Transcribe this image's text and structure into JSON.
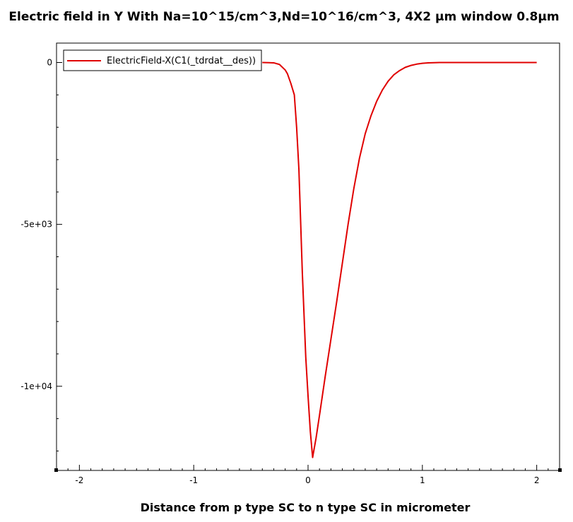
{
  "chart_data": {
    "type": "line",
    "title": "Electric field in Y With Na=10^15/cm^3,Nd=10^16/cm^3, 4X2 µm window 0.8µm",
    "xlabel": "Distance from p type SC to n type SC in micrometer",
    "ylabel": "",
    "xlim": [
      -2.2,
      2.2
    ],
    "ylim": [
      -12600,
      600
    ],
    "x_ticks": [
      -2,
      -1,
      0,
      1,
      2
    ],
    "x_tick_labels": [
      "-2",
      "-1",
      "0",
      "1",
      "2"
    ],
    "y_ticks": [
      0,
      -5000,
      -10000
    ],
    "y_tick_labels": [
      "0",
      "-5e+03",
      "-1e+04"
    ],
    "grid": false,
    "legend_position": "top-left",
    "series": [
      {
        "name": "ElectricField-X(C1(_tdrdat__des))",
        "color": "#e00000",
        "x": [
          -0.4,
          -0.3,
          -0.25,
          -0.2,
          -0.18,
          -0.15,
          -0.12,
          -0.1,
          -0.08,
          -0.05,
          -0.02,
          0.0,
          0.02,
          0.04,
          0.07,
          0.1,
          0.15,
          0.2,
          0.25,
          0.3,
          0.35,
          0.4,
          0.45,
          0.5,
          0.55,
          0.6,
          0.65,
          0.7,
          0.75,
          0.8,
          0.85,
          0.9,
          0.95,
          1.0,
          1.05,
          1.1,
          1.15,
          1.2,
          1.3,
          1.4,
          1.5,
          1.6,
          1.8,
          2.0
        ],
        "y": [
          0,
          -10,
          -60,
          -230,
          -350,
          -650,
          -1000,
          -2000,
          -3300,
          -6500,
          -9100,
          -10300,
          -11400,
          -12200,
          -11600,
          -10900,
          -9700,
          -8550,
          -7400,
          -6200,
          -5000,
          -3900,
          -2950,
          -2200,
          -1650,
          -1200,
          -850,
          -580,
          -380,
          -250,
          -150,
          -90,
          -50,
          -25,
          -12,
          -5,
          0,
          0,
          0,
          0,
          0,
          0,
          0,
          0
        ]
      }
    ]
  }
}
